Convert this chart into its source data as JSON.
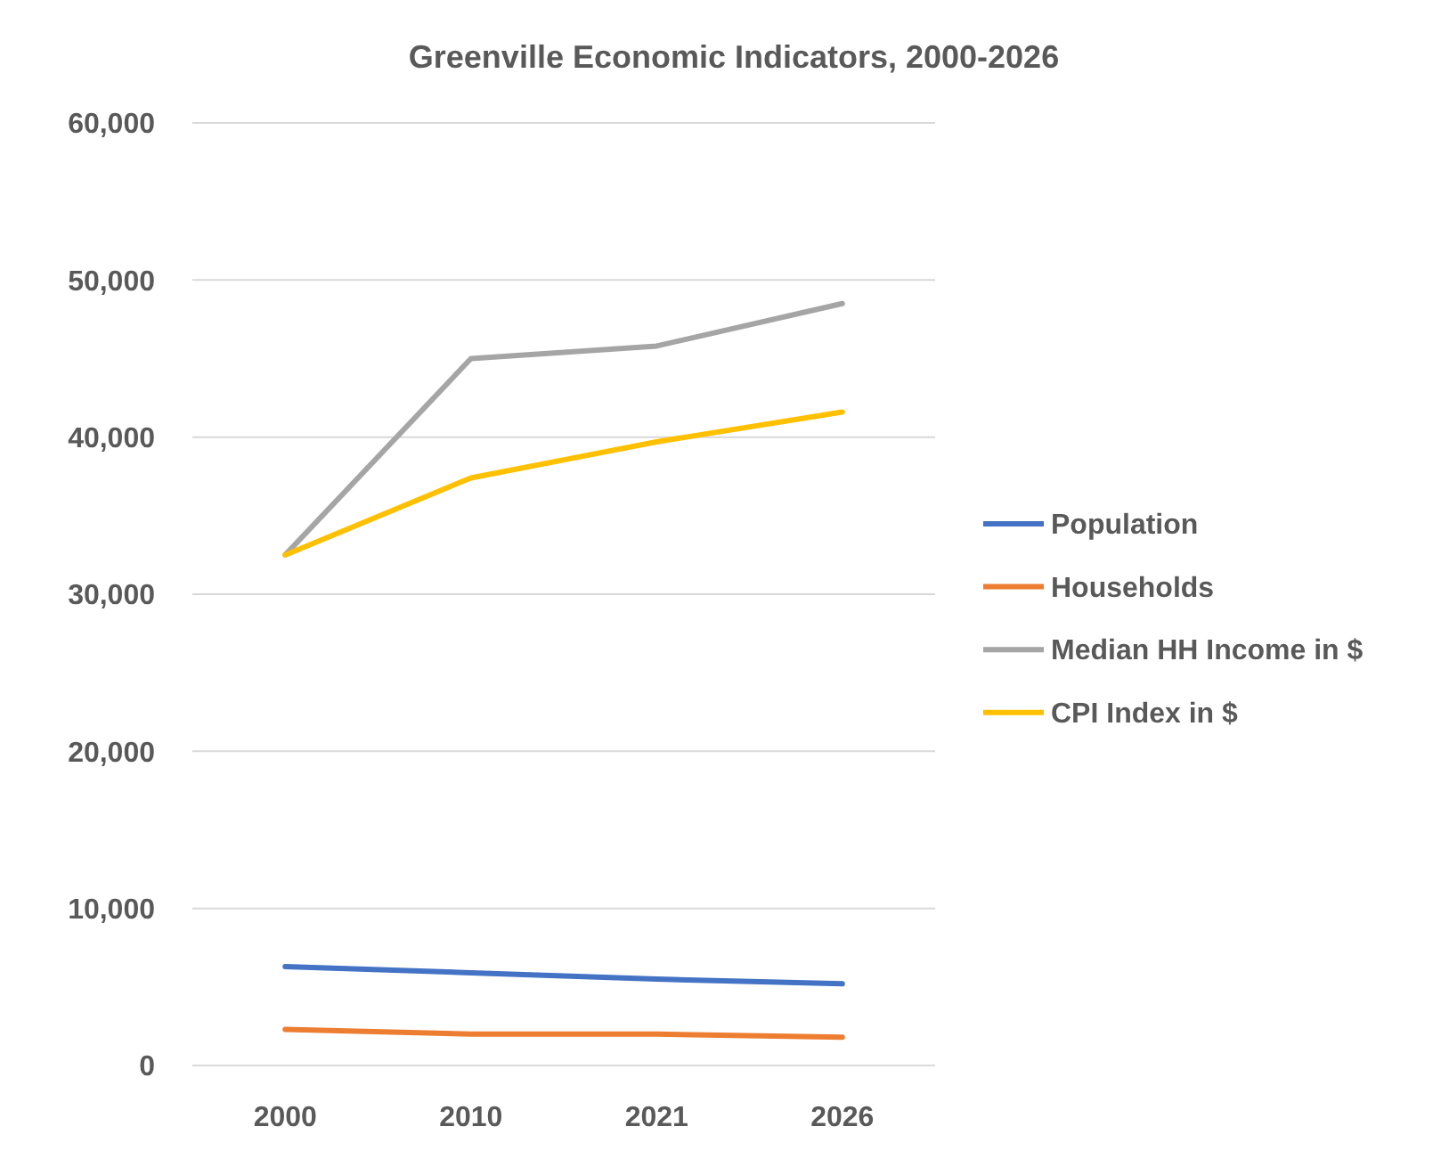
{
  "chart_data": {
    "type": "line",
    "title": "Greenville Economic Indicators, 2000-2026",
    "categories": [
      "2000",
      "2010",
      "2021",
      "2026"
    ],
    "series": [
      {
        "name": "Population",
        "color": "#4472c4",
        "values": [
          6300,
          5900,
          5500,
          5200
        ]
      },
      {
        "name": "Households",
        "color": "#ed7d31",
        "values": [
          2300,
          2000,
          2000,
          1800
        ]
      },
      {
        "name": "Median HH Income in $",
        "color": "#a5a5a5",
        "values": [
          32500,
          45000,
          45800,
          48500
        ]
      },
      {
        "name": "CPI Index in $",
        "color": "#ffc000",
        "values": [
          32500,
          37400,
          39700,
          41600
        ]
      }
    ],
    "ylim": [
      0,
      60000
    ],
    "yticks": [
      0,
      {
        "value": 10000,
        "label": "10,000"
      },
      {
        "value": 20000,
        "label": "20,000"
      },
      {
        "value": 30000,
        "label": "30,000"
      },
      {
        "value": 40000,
        "label": "40,000"
      },
      {
        "value": 50000,
        "label": "50,000"
      },
      {
        "value": 60000,
        "label": "60,000"
      }
    ],
    "grid": "y",
    "legend": "right",
    "marker": "none",
    "line_style": "solid"
  }
}
